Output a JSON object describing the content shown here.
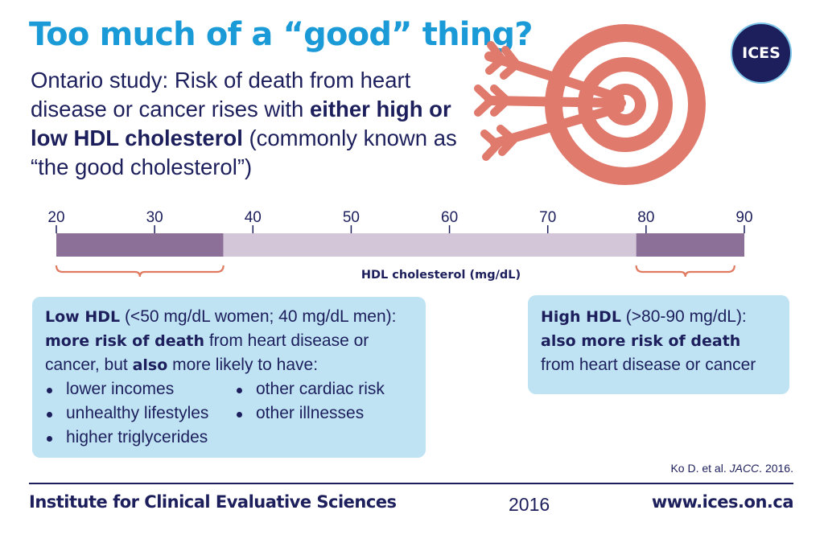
{
  "header": {
    "title": "Too much of a “good” thing?",
    "subtitle_1": "Ontario study: Risk of death from heart disease or cancer rises with ",
    "subtitle_bold": "either high or low HDL cholesterol",
    "subtitle_2": " (commonly known as “the good cholesterol”)"
  },
  "logo": {
    "text": "ICES"
  },
  "icons": {
    "target": "target-with-arrows-icon"
  },
  "colors": {
    "title": "#1a9ad6",
    "navy": "#1c1f5c",
    "range_dark": "#8d7098",
    "range_light": "#d3c6d9",
    "bracket": "#e07a60",
    "target": "#e07a6c",
    "box": "#bfe3f3"
  },
  "scale": {
    "ticks": [
      20,
      30,
      40,
      50,
      60,
      70,
      80,
      90
    ],
    "label": "HDL cholesterol (mg/dL)",
    "segments": [
      {
        "from": 20,
        "to": 37,
        "shade": "dark"
      },
      {
        "from": 37,
        "to": 79,
        "shade": "light"
      },
      {
        "from": 79,
        "to": 90,
        "shade": "dark"
      }
    ],
    "brackets": [
      {
        "from": 20,
        "to": 37
      },
      {
        "from": 79,
        "to": 89
      }
    ]
  },
  "low_box": {
    "title_bold": "Low HDL",
    "title_rest": " (<50 mg/dL women; 40 mg/dL men):",
    "line2_bold": "more risk of death",
    "line2_rest": " from heart disease or cancer, but ",
    "line2_bold2": "also",
    "line2_rest2": " more likely to have:",
    "bullets_col1": [
      "lower incomes",
      "unhealthy lifestyles",
      "higher triglycerides"
    ],
    "bullets_col2": [
      "other cardiac risk",
      "other illnesses"
    ]
  },
  "high_box": {
    "title_bold": "High HDL",
    "title_rest": " (>80-90 mg/dL):",
    "line2_bold": "also more risk of death",
    "line2_rest": " from heart disease or cancer"
  },
  "citation": {
    "authors": "Ko D. et al. ",
    "journal": "JACC",
    "year": ". 2016."
  },
  "footer": {
    "org": "Institute for Clinical Evaluative Sciences",
    "year": "2016",
    "url": "www.ices.on.ca"
  }
}
